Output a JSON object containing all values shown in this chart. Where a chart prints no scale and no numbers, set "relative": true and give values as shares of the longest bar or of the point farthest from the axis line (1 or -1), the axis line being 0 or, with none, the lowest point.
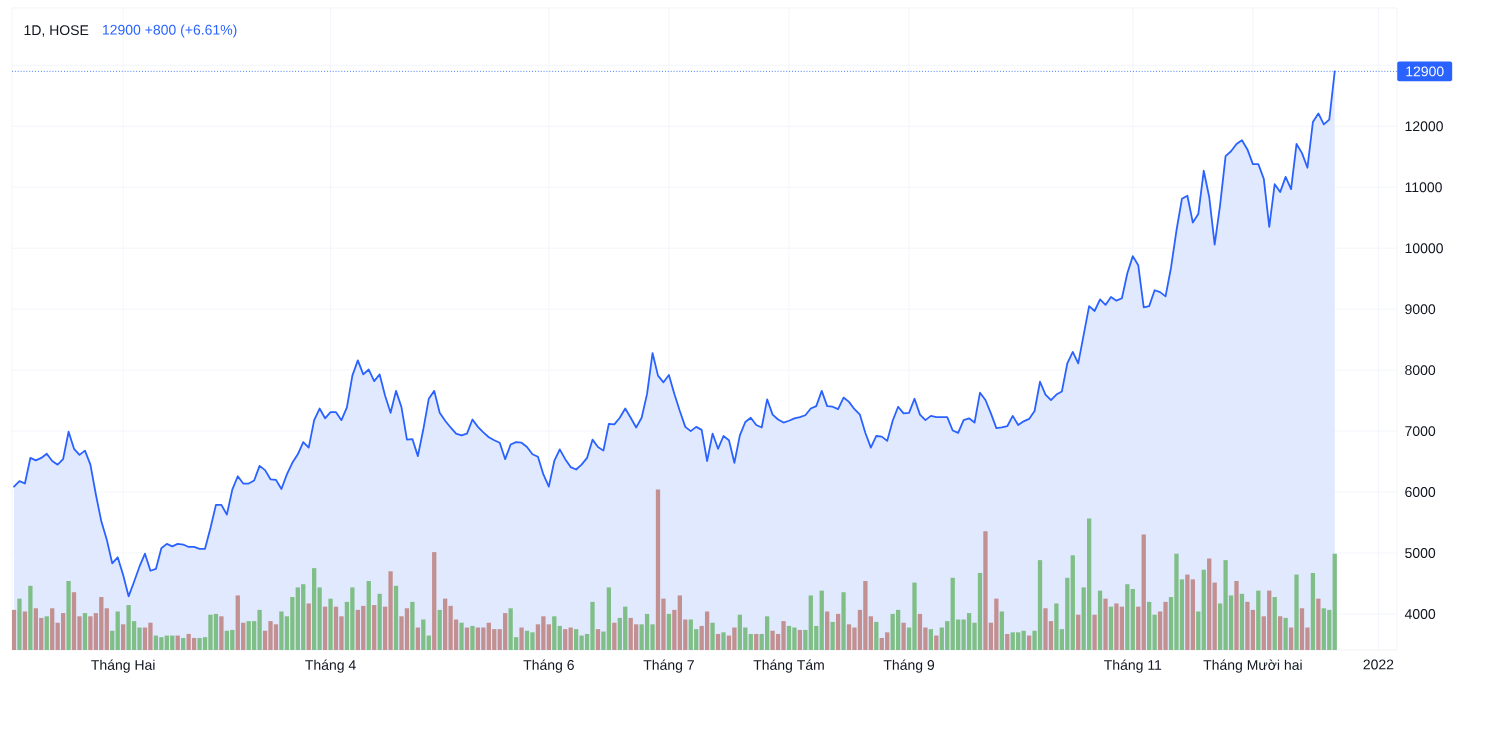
{
  "chart_data": [
    {
      "type": "area",
      "title": "1D, HOSE",
      "subtitle": "12900 +800 (+6.61%)",
      "color": "#2962ff",
      "categories": [
        null,
        null,
        null,
        null,
        null,
        null,
        null,
        null,
        null,
        null,
        null,
        null,
        null,
        null,
        null,
        null,
        null,
        null,
        null,
        null,
        "Tháng Hai",
        null,
        null,
        null,
        null,
        null,
        null,
        null,
        null,
        null,
        null,
        null,
        null,
        null,
        null,
        null,
        null,
        null,
        null,
        null,
        null,
        null,
        null,
        null,
        null,
        null,
        null,
        null,
        null,
        null,
        null,
        null,
        null,
        null,
        null,
        null,
        null,
        null,
        "Tháng 4",
        null,
        null,
        null,
        null,
        null,
        null,
        null,
        null,
        null,
        null,
        null,
        null,
        null,
        null,
        null,
        null,
        null,
        null,
        null,
        null,
        null,
        null,
        null,
        null,
        null,
        null,
        null,
        null,
        null,
        null,
        null,
        null,
        null,
        null,
        null,
        null,
        null,
        null,
        null,
        "Tháng 6",
        null,
        null,
        null,
        null,
        null,
        null,
        null,
        null,
        null,
        null,
        null,
        null,
        null,
        null,
        null,
        null,
        null,
        null,
        null,
        null,
        null,
        "Tháng 7",
        null,
        null,
        null,
        null,
        null,
        null,
        null,
        null,
        null,
        null,
        null,
        null,
        null,
        null,
        null,
        null,
        null,
        null,
        null,
        null,
        null,
        "Tháng Tám",
        null,
        null,
        null,
        null,
        null,
        null,
        null,
        null,
        null,
        null,
        null,
        null,
        null,
        null,
        null,
        null,
        null,
        null,
        null,
        null,
        null,
        "Tháng 9",
        null,
        null,
        null,
        null,
        null,
        null,
        null,
        null,
        null,
        null,
        null,
        null,
        null,
        null,
        null,
        null,
        null,
        null,
        null,
        null,
        null,
        null,
        null,
        null,
        null,
        null,
        null,
        null,
        null,
        null,
        null,
        null,
        null,
        null,
        null,
        null,
        null,
        null,
        null,
        null,
        "Tháng 11",
        null,
        null,
        null,
        null,
        null,
        null,
        null,
        null,
        null,
        null,
        null,
        null,
        null,
        null,
        null,
        null,
        null,
        null,
        null,
        null,
        null,
        "Tháng Mười hai",
        null,
        null,
        null,
        null,
        null,
        null,
        null,
        null,
        null,
        null,
        null,
        null,
        null,
        null,
        null,
        null,
        null,
        null,
        null,
        null,
        null,
        null,
        "2022"
      ],
      "values": [
        6090,
        6180,
        6140,
        6560,
        6520,
        6560,
        6630,
        6510,
        6450,
        6540,
        6990,
        6710,
        6610,
        6680,
        6450,
        5960,
        5520,
        5220,
        4830,
        4930,
        4640,
        4290,
        4530,
        4780,
        4990,
        4710,
        4740,
        5080,
        5150,
        5110,
        5150,
        5140,
        5100,
        5100,
        5070,
        5070,
        5410,
        5790,
        5790,
        5630,
        6040,
        6260,
        6140,
        6140,
        6190,
        6430,
        6360,
        6210,
        6200,
        6050,
        6290,
        6480,
        6620,
        6820,
        6730,
        7180,
        7370,
        7210,
        7310,
        7310,
        7180,
        7390,
        7910,
        8160,
        7930,
        8010,
        7820,
        7930,
        7580,
        7300,
        7660,
        7390,
        6860,
        6870,
        6590,
        7030,
        7530,
        7660,
        7300,
        7170,
        7060,
        6960,
        6930,
        6960,
        7190,
        7070,
        6980,
        6900,
        6850,
        6810,
        6540,
        6780,
        6820,
        6810,
        6740,
        6620,
        6580,
        6290,
        6090,
        6510,
        6700,
        6540,
        6410,
        6370,
        6450,
        6560,
        6860,
        6740,
        6680,
        7120,
        7110,
        7220,
        7370,
        7220,
        7060,
        7220,
        7610,
        8280,
        7910,
        7800,
        7920,
        7610,
        7330,
        7070,
        7000,
        7070,
        7020,
        6510,
        6960,
        6710,
        6920,
        6850,
        6480,
        6930,
        7150,
        7220,
        7100,
        7060,
        7520,
        7270,
        7190,
        7140,
        7170,
        7210,
        7230,
        7260,
        7370,
        7410,
        7660,
        7410,
        7400,
        7360,
        7550,
        7480,
        7360,
        7270,
        6970,
        6730,
        6920,
        6910,
        6840,
        7170,
        7400,
        7290,
        7300,
        7530,
        7270,
        7180,
        7250,
        7230,
        7230,
        7230,
        7010,
        6970,
        7180,
        7210,
        7140,
        7630,
        7510,
        7290,
        7050,
        7060,
        7080,
        7250,
        7100,
        7160,
        7200,
        7330,
        7810,
        7600,
        7510,
        7600,
        7650,
        8110,
        8300,
        8110,
        8580,
        9050,
        8970,
        9160,
        9070,
        9200,
        9140,
        9180,
        9590,
        9870,
        9720,
        9030,
        9050,
        9310,
        9280,
        9210,
        9680,
        10290,
        10810,
        10860,
        10420,
        10560,
        11270,
        10840,
        10060,
        10710,
        11510,
        11590,
        11710,
        11770,
        11620,
        11380,
        11380,
        11140,
        10350,
        11050,
        10920,
        11170,
        10970,
        11710,
        11560,
        11320,
        12070,
        12210,
        12030,
        12110,
        12900,
        null,
        null,
        null,
        null,
        null,
        null,
        null,
        null
      ],
      "ylim": [
        3410,
        13940
      ],
      "yticks": [
        4000,
        5000,
        6000,
        7000,
        8000,
        9000,
        10000,
        11000,
        12000,
        {
          "value": 13000,
          "label": null
        }
      ],
      "grid": true,
      "ref_lines": [
        {
          "axis": "y",
          "value": 12900,
          "label": "12900",
          "color": "#2962ff",
          "line_style": "dotted"
        }
      ]
    },
    {
      "type": "bar",
      "relative": true,
      "categories": [
        null,
        null,
        null,
        null,
        null,
        null,
        null,
        null,
        null,
        null,
        null,
        null,
        null,
        null,
        null,
        null,
        null,
        null,
        null,
        null,
        null,
        null,
        null,
        null,
        null,
        null,
        null,
        null,
        null,
        null,
        null,
        null,
        null,
        null,
        null,
        null,
        null,
        null,
        null,
        null,
        null,
        null,
        null,
        null,
        null,
        null,
        null,
        null,
        null,
        null,
        null,
        null,
        null,
        null,
        null,
        null,
        null,
        null,
        null,
        null,
        null,
        null,
        null,
        null,
        null,
        null,
        null,
        null,
        null,
        null,
        null,
        null,
        null,
        null,
        null,
        null,
        null,
        null,
        null,
        null,
        null,
        null,
        null,
        null,
        null,
        null,
        null,
        null,
        null,
        null,
        null,
        null,
        null,
        null,
        null,
        null,
        null,
        null,
        null,
        null,
        null,
        null,
        null,
        null,
        null,
        null,
        null,
        null,
        null,
        null,
        null,
        null,
        null,
        null,
        null,
        null,
        null,
        null,
        null,
        null,
        null,
        null,
        null,
        null,
        null,
        null,
        null,
        null,
        null,
        null,
        null,
        null,
        null,
        null,
        null,
        null,
        null,
        null,
        null,
        null,
        null,
        null,
        null,
        null,
        null,
        null,
        null,
        null,
        null,
        null,
        null,
        null,
        null,
        null,
        null,
        null,
        null,
        null,
        null,
        null,
        null,
        null,
        null,
        null,
        null,
        null,
        null,
        null,
        null,
        null,
        null,
        null,
        null,
        null,
        null,
        null,
        null,
        null,
        null,
        null,
        null,
        null,
        null,
        null,
        null,
        null,
        null,
        null,
        null,
        null,
        null,
        null,
        null,
        null,
        null,
        null,
        null,
        null,
        null,
        null,
        null,
        null,
        null,
        null,
        null,
        null,
        null,
        null,
        null,
        null,
        null,
        null,
        null,
        null,
        null,
        null,
        null,
        null,
        null,
        null,
        null,
        null,
        null,
        null,
        null,
        null,
        null,
        null,
        null,
        null,
        null,
        null,
        null,
        null,
        null,
        null,
        null,
        null,
        null,
        null,
        null,
        null,
        null
      ],
      "values": [
        0.25,
        0.32,
        0.24,
        0.4,
        0.26,
        0.2,
        0.21,
        0.26,
        0.17,
        0.23,
        0.43,
        0.36,
        0.21,
        0.23,
        0.21,
        0.23,
        0.33,
        0.26,
        0.12,
        0.24,
        0.16,
        0.28,
        0.18,
        0.14,
        0.14,
        0.17,
        0.09,
        0.08,
        0.09,
        0.09,
        0.09,
        0.075,
        0.1,
        0.075,
        0.075,
        0.08,
        0.22,
        0.225,
        0.21,
        0.12,
        0.125,
        0.34,
        0.17,
        0.18,
        0.18,
        0.25,
        0.12,
        0.18,
        0.16,
        0.24,
        0.21,
        0.33,
        0.39,
        0.41,
        0.29,
        0.51,
        0.39,
        0.27,
        0.32,
        0.27,
        0.21,
        0.3,
        0.39,
        0.25,
        0.275,
        0.43,
        0.28,
        0.35,
        0.27,
        0.49,
        0.4,
        0.21,
        0.26,
        0.3,
        0.14,
        0.19,
        0.09,
        0.61,
        0.25,
        0.32,
        0.275,
        0.19,
        0.17,
        0.14,
        0.15,
        0.14,
        0.14,
        0.17,
        0.13,
        0.13,
        0.23,
        0.26,
        0.08,
        0.14,
        0.12,
        0.11,
        0.16,
        0.21,
        0.16,
        0.21,
        0.15,
        0.13,
        0.14,
        0.13,
        0.09,
        0.1,
        0.3,
        0.13,
        0.115,
        0.39,
        0.17,
        0.2,
        0.27,
        0.2,
        0.16,
        0.16,
        0.225,
        0.16,
        1.0,
        0.32,
        0.225,
        0.25,
        0.34,
        0.19,
        0.19,
        0.13,
        0.15,
        0.24,
        0.17,
        0.1,
        0.11,
        0.09,
        0.14,
        0.22,
        0.14,
        0.1,
        0.1,
        0.1,
        0.21,
        0.12,
        0.1,
        0.18,
        0.15,
        0.14,
        0.125,
        0.125,
        0.34,
        0.15,
        0.37,
        0.24,
        0.175,
        0.225,
        0.36,
        0.16,
        0.14,
        0.25,
        0.43,
        0.21,
        0.175,
        0.075,
        0.11,
        0.225,
        0.25,
        0.17,
        0.14,
        0.42,
        0.225,
        0.14,
        0.13,
        0.09,
        0.14,
        0.18,
        0.45,
        0.19,
        0.19,
        0.23,
        0.17,
        0.48,
        0.74,
        0.17,
        0.32,
        0.24,
        0.1,
        0.11,
        0.11,
        0.12,
        0.09,
        0.12,
        0.56,
        0.26,
        0.18,
        0.29,
        0.13,
        0.45,
        0.59,
        0.22,
        0.39,
        0.82,
        0.22,
        0.37,
        0.32,
        0.27,
        0.29,
        0.27,
        0.41,
        0.38,
        0.27,
        0.72,
        0.3,
        0.22,
        0.24,
        0.3,
        0.33,
        0.6,
        0.44,
        0.47,
        0.44,
        0.24,
        0.5,
        0.57,
        0.42,
        0.29,
        0.56,
        0.34,
        0.43,
        0.35,
        0.3,
        0.25,
        0.37,
        0.21,
        0.37,
        0.33,
        0.21,
        0.2,
        0.14,
        0.47,
        0.26,
        0.14,
        0.48,
        0.32,
        0.26,
        0.25,
        0.6
      ],
      "colors": [
        "#c29090",
        "#7fbf87",
        "#c29090",
        "#7fbf87",
        "#c29090",
        "#c29090",
        "#7fbf87",
        "#c29090",
        "#c29090",
        "#c29090",
        "#7fbf87",
        "#c29090",
        "#c29090",
        "#7fbf87",
        "#c29090",
        "#c29090",
        "#c29090",
        "#c29090",
        "#7fbf87",
        "#7fbf87",
        "#c29090",
        "#7fbf87",
        "#7fbf87",
        "#7fbf87",
        "#c29090",
        "#c29090",
        "#7fbf87",
        "#7fbf87",
        "#7fbf87",
        "#7fbf87",
        "#c29090",
        "#7fbf87",
        "#c29090",
        "#c29090",
        "#7fbf87",
        "#7fbf87",
        "#7fbf87",
        "#7fbf87",
        "#c29090",
        "#7fbf87",
        "#7fbf87",
        "#c29090",
        "#c29090",
        "#7fbf87",
        "#7fbf87",
        "#7fbf87",
        "#c29090",
        "#c29090",
        "#c29090",
        "#7fbf87",
        "#7fbf87",
        "#7fbf87",
        "#7fbf87",
        "#7fbf87",
        "#c29090",
        "#7fbf87",
        "#7fbf87",
        "#c29090",
        "#7fbf87",
        "#c29090",
        "#c29090",
        "#7fbf87",
        "#7fbf87",
        "#c29090",
        "#c29090",
        "#7fbf87",
        "#c29090",
        "#7fbf87",
        "#c29090",
        "#c29090",
        "#7fbf87",
        "#c29090",
        "#c29090",
        "#7fbf87",
        "#c29090",
        "#7fbf87",
        "#7fbf87",
        "#c29090",
        "#7fbf87",
        "#c29090",
        "#c29090",
        "#c29090",
        "#7fbf87",
        "#c29090",
        "#7fbf87",
        "#c29090",
        "#c29090",
        "#c29090",
        "#c29090",
        "#c29090",
        "#c29090",
        "#7fbf87",
        "#7fbf87",
        "#c29090",
        "#7fbf87",
        "#7fbf87",
        "#c29090",
        "#c29090",
        "#c29090",
        "#7fbf87",
        "#7fbf87",
        "#c29090",
        "#c29090",
        "#7fbf87",
        "#7fbf87",
        "#7fbf87",
        "#7fbf87",
        "#c29090",
        "#7fbf87",
        "#7fbf87",
        "#c29090",
        "#7fbf87",
        "#7fbf87",
        "#c29090",
        "#c29090",
        "#7fbf87",
        "#7fbf87",
        "#7fbf87",
        "#c29090",
        "#c29090",
        "#7fbf87",
        "#c29090",
        "#c29090",
        "#c29090",
        "#7fbf87",
        "#7fbf87",
        "#c29090",
        "#c29090",
        "#7fbf87",
        "#c29090",
        "#7fbf87",
        "#c29090",
        "#c29090",
        "#7fbf87",
        "#7fbf87",
        "#7fbf87",
        "#c29090",
        "#7fbf87",
        "#7fbf87",
        "#c29090",
        "#c29090",
        "#c29090",
        "#7fbf87",
        "#7fbf87",
        "#c29090",
        "#7fbf87",
        "#7fbf87",
        "#7fbf87",
        "#7fbf87",
        "#c29090",
        "#7fbf87",
        "#c29090",
        "#7fbf87",
        "#c29090",
        "#c29090",
        "#c29090",
        "#c29090",
        "#c29090",
        "#7fbf87",
        "#c29090",
        "#c29090",
        "#7fbf87",
        "#7fbf87",
        "#c29090",
        "#7fbf87",
        "#7fbf87",
        "#c29090",
        "#c29090",
        "#7fbf87",
        "#c29090",
        "#7fbf87",
        "#7fbf87",
        "#7fbf87",
        "#7fbf87",
        "#7fbf87",
        "#7fbf87",
        "#7fbf87",
        "#7fbf87",
        "#c29090",
        "#c29090",
        "#c29090",
        "#7fbf87",
        "#c29090",
        "#7fbf87",
        "#7fbf87",
        "#7fbf87",
        "#c29090",
        "#7fbf87",
        "#7fbf87",
        "#c29090",
        "#c29090",
        "#7fbf87",
        "#7fbf87",
        "#7fbf87",
        "#7fbf87",
        "#c29090",
        "#7fbf87",
        "#7fbf87",
        "#c29090",
        "#7fbf87",
        "#c29090",
        "#7fbf87",
        "#c29090",
        "#c29090",
        "#7fbf87",
        "#7fbf87",
        "#c29090",
        "#c29090",
        "#7fbf87",
        "#7fbf87",
        "#c29090",
        "#c29090",
        "#7fbf87",
        "#7fbf87",
        "#7fbf87",
        "#c29090",
        "#c29090",
        "#7fbf87",
        "#7fbf87",
        "#c29090",
        "#c29090",
        "#7fbf87",
        "#7fbf87",
        "#7fbf87",
        "#c29090",
        "#7fbf87",
        "#c29090",
        "#c29090",
        "#7fbf87",
        "#c29090",
        "#c29090",
        "#7fbf87",
        "#c29090",
        "#7fbf87",
        "#c29090",
        "#7fbf87",
        "#c29090",
        "#c29090",
        "#7fbf87",
        "#c29090",
        "#7fbf87",
        "#7fbf87",
        "#7fbf87"
      ]
    }
  ]
}
